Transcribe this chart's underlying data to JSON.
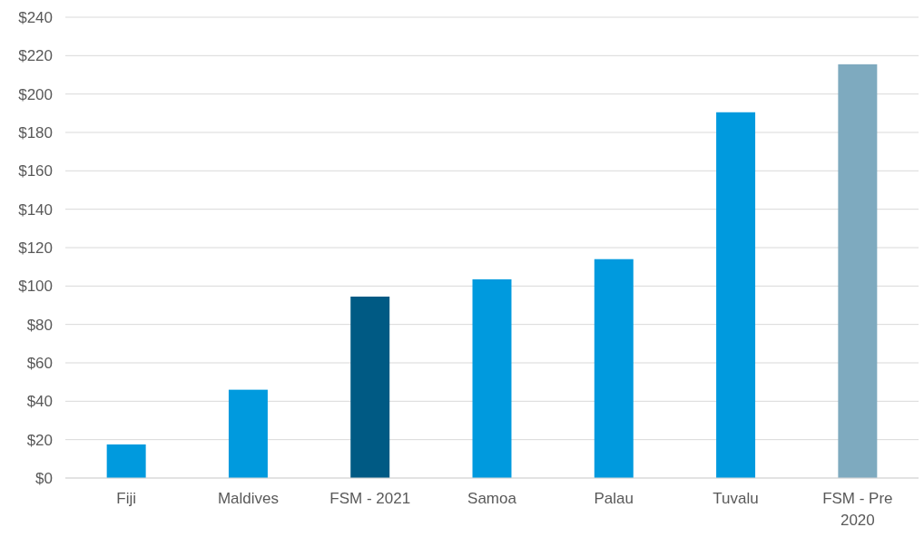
{
  "chart_data": {
    "type": "bar",
    "categories": [
      "Fiji",
      "Maldives",
      "FSM - 2021",
      "Samoa",
      "Palau",
      "Tuvalu",
      "FSM - Pre 2020"
    ],
    "values": [
      17.5,
      46,
      94.5,
      103.5,
      114,
      190.5,
      215.5
    ],
    "colors": [
      "#009ade",
      "#009ade",
      "#005a84",
      "#009ade",
      "#009ade",
      "#009ade",
      "#7eaabf"
    ],
    "ylim": [
      0,
      240
    ],
    "yticks": [
      {
        "value": 0,
        "label": "$0"
      },
      {
        "value": 20,
        "label": "$20"
      },
      {
        "value": 40,
        "label": "$40"
      },
      {
        "value": 60,
        "label": "$60"
      },
      {
        "value": 80,
        "label": "$80"
      },
      {
        "value": 100,
        "label": "$100"
      },
      {
        "value": 120,
        "label": "$120"
      },
      {
        "value": 140,
        "label": "$140"
      },
      {
        "value": 160,
        "label": "$160"
      },
      {
        "value": 180,
        "label": "$180"
      },
      {
        "value": 200,
        "label": "$200"
      },
      {
        "value": 220,
        "label": "$220"
      },
      {
        "value": 240,
        "label": "$240"
      }
    ],
    "grid": "y"
  }
}
